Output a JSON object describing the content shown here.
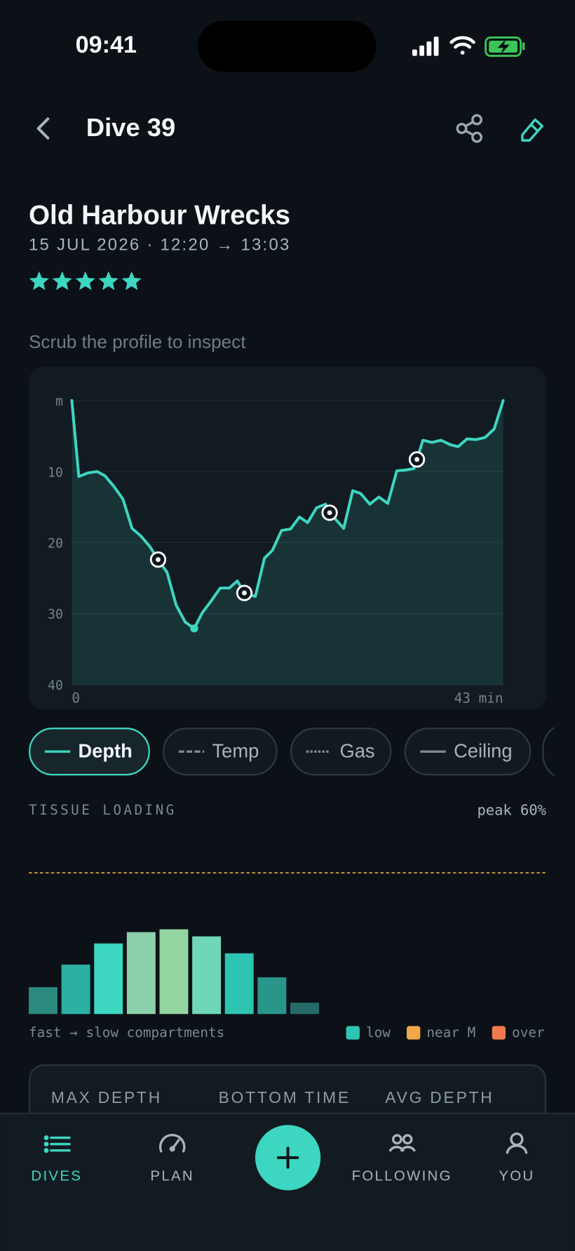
{
  "status_bar": {
    "time": "09:41"
  },
  "header": {
    "title": "Dive 39"
  },
  "dive": {
    "site": "Old Harbour Wrecks",
    "datetime": "15 JUL 2026 · 12:20 → 13:03",
    "rating": 5
  },
  "hint": "Scrub the profile to inspect",
  "chart_data": [
    {
      "type": "line",
      "x": [
        0,
        0.7,
        1.6,
        2.5,
        3.3,
        4.2,
        5.1,
        6.0,
        6.9,
        7.8,
        8.6,
        9.5,
        10.4,
        11.3,
        12.2,
        13.0,
        13.9,
        14.8,
        15.7,
        16.5,
        17.2,
        18.3,
        19.2,
        20.0,
        20.9,
        21.8,
        22.7,
        23.5,
        24.4,
        25.3,
        25.7,
        27.1,
        28.0,
        28.8,
        29.7,
        30.6,
        31.5,
        32.4,
        33.2,
        34.1,
        34.4,
        35.0,
        35.9,
        36.8,
        37.7,
        38.5,
        39.4,
        40.3,
        41.2,
        42.1,
        43
      ],
      "values": [
        0,
        10.7,
        10.2,
        10,
        10.6,
        12.1,
        13.9,
        18,
        19.1,
        20.6,
        22.4,
        24.2,
        28.8,
        31.2,
        32.1,
        29.9,
        28.2,
        26.4,
        26.4,
        25.4,
        27.1,
        27.6,
        22.2,
        21.1,
        18.3,
        18.1,
        16.4,
        17.2,
        15.1,
        14.6,
        15.8,
        18,
        12.7,
        13.1,
        14.6,
        13.6,
        14.5,
        9.9,
        9.8,
        9.6,
        8.3,
        5.6,
        5.9,
        5.6,
        6.2,
        6.5,
        5.4,
        5.5,
        5.2,
        4.0,
        0
      ],
      "color": "#3dd6c0",
      "markers": {
        "x": [
          8.6,
          17.2,
          25.7,
          34.4
        ],
        "values": [
          22.4,
          27.1,
          15.8,
          8.3
        ]
      },
      "max_depth_point": {
        "x": 12.2,
        "value": 32.1
      },
      "xlim": [
        0,
        43
      ],
      "ylim": [
        0,
        40
      ],
      "y_inverted": true,
      "xticks": [
        0,
        {
          "value": 43,
          "label": "43 min"
        }
      ],
      "yticks": [
        {
          "value": 0,
          "label": "m"
        },
        10,
        20,
        30,
        40
      ],
      "grid": true
    },
    {
      "type": "bar",
      "title": "TISSUE LOADING",
      "annotation": "peak 60%",
      "values": [
        19,
        35,
        50,
        58,
        60,
        55,
        43,
        26,
        8
      ],
      "colors": [
        "#2a8a80",
        "#2bb0a2",
        "#3dd6c0",
        "#8dd0ad",
        "#93d4a0",
        "#6fd6b8",
        "#2ec4b2",
        "#2a958b",
        "#246b68"
      ],
      "ylim": [
        0,
        100
      ],
      "limit_line": 100,
      "limit_color": "#e0a13c",
      "xlabel": "fast → slow compartments",
      "legend": [
        {
          "name": "low",
          "color": "#2ec4b2"
        },
        {
          "name": "near M",
          "color": "#f0a848"
        },
        {
          "name": "over",
          "color": "#f27a4f"
        }
      ]
    }
  ],
  "filters": [
    {
      "label": "Depth",
      "active": true,
      "style": "solid"
    },
    {
      "label": "Temp",
      "active": false,
      "style": "dashed"
    },
    {
      "label": "Gas",
      "active": false,
      "style": "dotted"
    },
    {
      "label": "Ceiling",
      "active": false,
      "style": "long"
    }
  ],
  "stats": {
    "labels": [
      "MAX DEPTH",
      "BOTTOM TIME",
      "AVG DEPTH"
    ]
  },
  "nav": {
    "items": [
      {
        "label": "DIVES",
        "active": true
      },
      {
        "label": "PLAN",
        "active": false
      },
      {
        "label": "FOLLOWING",
        "active": false
      },
      {
        "label": "YOU",
        "active": false
      }
    ]
  }
}
